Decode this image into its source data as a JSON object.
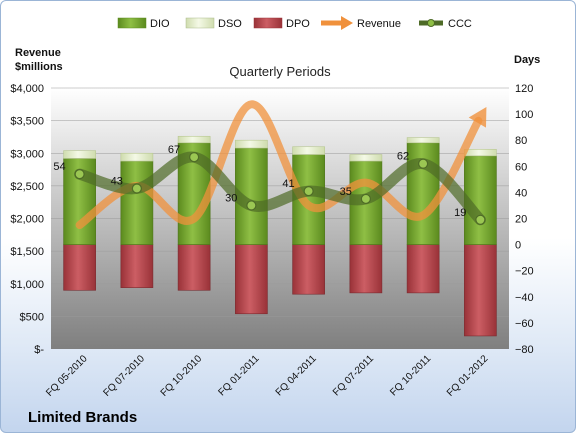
{
  "chart_data": {
    "type": "bar",
    "title": "Quarterly Periods",
    "company": "Limited Brands",
    "y_left_label": [
      "Revenue",
      "$millions"
    ],
    "y_right_label": "Days",
    "categories": [
      "FQ 05-2010",
      "FQ 07-2010",
      "FQ 10-2010",
      "FQ 01-2011",
      "FQ 04-2011",
      "FQ 07-2011",
      "FQ 10-2011",
      "FQ 01-2012"
    ],
    "stacked_days": {
      "DIO": [
        66,
        64,
        78,
        74,
        69,
        64,
        78,
        68
      ],
      "DSO": [
        6,
        6,
        5,
        6,
        6,
        5,
        4,
        5
      ],
      "DPO": [
        -35,
        -33,
        -35,
        -53,
        -38,
        -37,
        -37,
        -70
      ]
    },
    "series": [
      {
        "name": "DIO",
        "color": "#6e9e2a",
        "axis": "right"
      },
      {
        "name": "DSO",
        "color": "#e7f0cf",
        "axis": "right"
      },
      {
        "name": "DPO",
        "color": "#b7434a",
        "axis": "right"
      },
      {
        "name": "Revenue",
        "color": "#f0913c",
        "axis": "left",
        "values": [
          1900,
          2500,
          2000,
          3750,
          2200,
          2550,
          2050,
          3550
        ]
      },
      {
        "name": "CCC",
        "color": "#4e6b27",
        "axis": "right",
        "values": [
          54,
          43,
          67,
          30,
          41,
          35,
          62,
          19
        ]
      }
    ],
    "ccc_labels": [
      "54",
      "43",
      "67",
      "30",
      "41",
      "35",
      "62",
      "19"
    ],
    "left_ticks": [
      "$4,000",
      "$3,500",
      "$3,000",
      "$2,500",
      "$2,000",
      "$1,500",
      "$1,000",
      "$500",
      "$-"
    ],
    "right_ticks": [
      "120",
      "100",
      "80",
      "60",
      "40",
      "20",
      "0",
      "−20",
      "−40",
      "−60",
      "−80"
    ],
    "ylim_left": [
      0,
      4000
    ],
    "ylim_right": [
      -80,
      120
    ],
    "legend": [
      "DIO",
      "DSO",
      "DPO",
      "Revenue",
      "CCC"
    ],
    "legend_position": "top"
  }
}
